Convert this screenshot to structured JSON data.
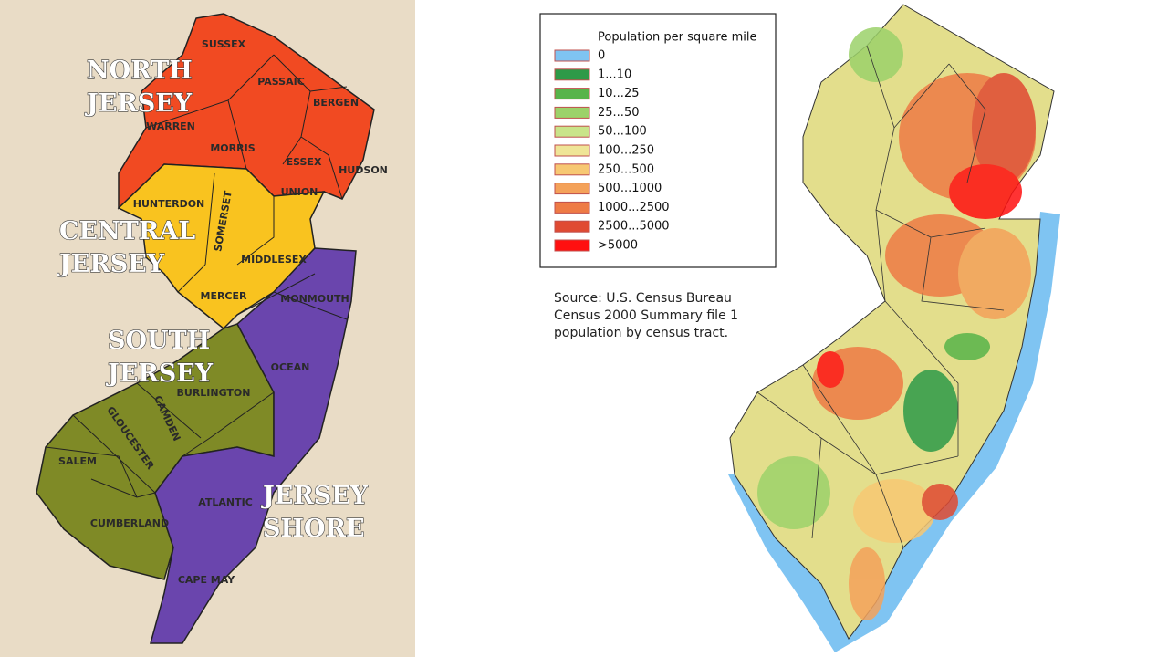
{
  "left_map": {
    "regions": [
      {
        "lines": [
          "NORTH",
          "JERSEY"
        ],
        "color": "#f14a22"
      },
      {
        "lines": [
          "CENTRAL",
          "JERSEY"
        ],
        "color": "#f9c31f"
      },
      {
        "lines": [
          "SOUTH",
          "JERSEY"
        ],
        "color": "#7f8a26"
      },
      {
        "lines": [
          "JERSEY",
          "SHORE"
        ],
        "color": "#6a45ad"
      }
    ],
    "counties": [
      "SUSSEX",
      "PASSAIC",
      "BERGEN",
      "WARREN",
      "MORRIS",
      "ESSEX",
      "HUDSON",
      "HUNTERDON",
      "UNION",
      "SOMERSET",
      "MIDDLESEX",
      "MERCER",
      "MONMOUTH",
      "OCEAN",
      "BURLINGTON",
      "CAMDEN",
      "GLOUCESTER",
      "SALEM",
      "CUMBERLAND",
      "ATLANTIC",
      "CAPE MAY"
    ]
  },
  "right_map": {
    "legend": {
      "title": "Population per square mile",
      "items": [
        {
          "label": "0",
          "color": "#7fc4f2"
        },
        {
          "label": "1...10",
          "color": "#2e9a48"
        },
        {
          "label": "10...25",
          "color": "#58b44a"
        },
        {
          "label": "25...50",
          "color": "#9cd26a"
        },
        {
          "label": "50...100",
          "color": "#c9e48a"
        },
        {
          "label": "100...250",
          "color": "#efe597"
        },
        {
          "label": "250...500",
          "color": "#f7c873"
        },
        {
          "label": "500...1000",
          "color": "#f4a25a"
        },
        {
          "label": "1000...2500",
          "color": "#ee7b45"
        },
        {
          "label": "2500...5000",
          "color": "#e04a32"
        },
        {
          "label": ">5000",
          "color": "#ff1010"
        }
      ]
    },
    "source": [
      "Source: U.S. Census Bureau",
      "Census 2000 Summary file 1",
      "population by census tract."
    ]
  }
}
